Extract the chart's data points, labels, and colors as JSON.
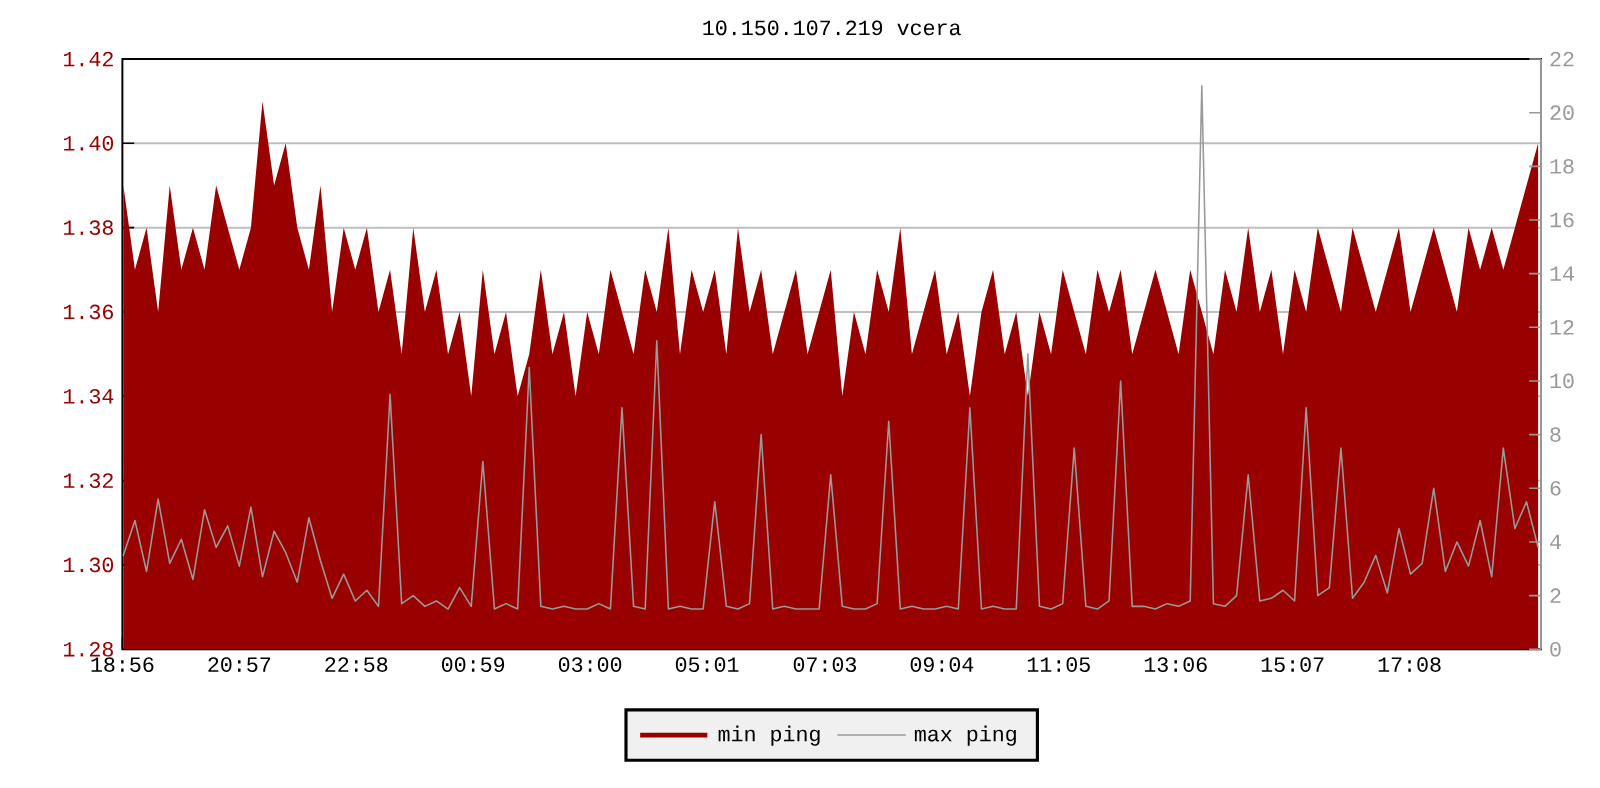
{
  "chart_data": {
    "type": "area",
    "title": "10.150.107.219 vcera",
    "x": [
      "2000-01-01T18:57",
      "2000-01-01T19:09",
      "2000-01-01T19:21",
      "2000-01-01T19:33",
      "2000-01-01T19:45",
      "2000-01-01T19:57",
      "2000-01-01T20:09",
      "2000-01-01T20:21",
      "2000-01-01T20:33",
      "2000-01-01T20:45",
      "2000-01-01T20:57",
      "2000-01-01T21:09",
      "2000-01-01T21:21",
      "2000-01-01T21:33",
      "2000-01-01T21:45",
      "2000-01-01T21:57",
      "2000-01-01T22:09",
      "2000-01-01T22:21",
      "2000-01-01T22:33",
      "2000-01-01T22:45",
      "2000-01-01T22:57",
      "2000-01-01T23:09",
      "2000-01-01T23:21",
      "2000-01-01T23:33",
      "2000-01-01T23:45",
      "2000-01-01T23:57",
      "2000-01-02T00:09",
      "2000-01-02T00:21",
      "2000-01-02T00:33",
      "2000-01-02T00:45",
      "2000-01-02T00:57",
      "2000-01-02T01:09",
      "2000-01-02T01:21",
      "2000-01-02T01:33",
      "2000-01-02T01:45",
      "2000-01-02T01:57",
      "2000-01-02T02:09",
      "2000-01-02T02:21",
      "2000-01-02T02:33",
      "2000-01-02T02:45",
      "2000-01-02T02:57",
      "2000-01-02T03:09",
      "2000-01-02T03:21",
      "2000-01-02T03:33",
      "2000-01-02T03:45",
      "2000-01-02T03:57",
      "2000-01-02T04:09",
      "2000-01-02T04:21",
      "2000-01-02T04:33",
      "2000-01-02T04:45",
      "2000-01-02T04:57",
      "2000-01-02T05:09",
      "2000-01-02T05:21",
      "2000-01-02T05:33",
      "2000-01-02T05:45",
      "2000-01-02T05:57",
      "2000-01-02T06:09",
      "2000-01-02T06:21",
      "2000-01-02T06:33",
      "2000-01-02T06:45",
      "2000-01-02T06:57",
      "2000-01-02T07:09",
      "2000-01-02T07:21",
      "2000-01-02T07:33",
      "2000-01-02T07:45",
      "2000-01-02T07:57",
      "2000-01-02T08:09",
      "2000-01-02T08:21",
      "2000-01-02T08:33",
      "2000-01-02T08:45",
      "2000-01-02T08:57",
      "2000-01-02T09:09",
      "2000-01-02T09:21",
      "2000-01-02T09:33",
      "2000-01-02T09:45",
      "2000-01-02T09:57",
      "2000-01-02T10:09",
      "2000-01-02T10:21",
      "2000-01-02T10:33",
      "2000-01-02T10:45",
      "2000-01-02T10:57",
      "2000-01-02T11:09",
      "2000-01-02T11:21",
      "2000-01-02T11:33",
      "2000-01-02T11:45",
      "2000-01-02T11:57",
      "2000-01-02T12:09",
      "2000-01-02T12:21",
      "2000-01-02T12:33",
      "2000-01-02T12:45",
      "2000-01-02T12:57",
      "2000-01-02T13:09",
      "2000-01-02T13:21",
      "2000-01-02T13:33",
      "2000-01-02T13:45",
      "2000-01-02T13:57",
      "2000-01-02T14:09",
      "2000-01-02T14:21",
      "2000-01-02T14:33",
      "2000-01-02T14:45",
      "2000-01-02T14:57",
      "2000-01-02T15:09",
      "2000-01-02T15:21",
      "2000-01-02T15:33",
      "2000-01-02T15:45",
      "2000-01-02T15:57",
      "2000-01-02T16:09",
      "2000-01-02T16:21",
      "2000-01-02T16:33",
      "2000-01-02T16:45",
      "2000-01-02T16:57",
      "2000-01-02T17:09",
      "2000-01-02T17:21",
      "2000-01-02T17:33",
      "2000-01-02T17:45",
      "2000-01-02T17:57",
      "2000-01-02T18:09",
      "2000-01-02T18:21",
      "2000-01-02T18:33",
      "2000-01-02T18:45",
      "2000-01-02T18:57",
      "2000-01-02T19:09",
      "2000-01-02T19:21"
    ],
    "series": [
      {
        "name": "min ping",
        "color": "#990000",
        "values": [
          1.39,
          1.37,
          1.38,
          1.36,
          1.39,
          1.37,
          1.38,
          1.37,
          1.39,
          1.38,
          1.37,
          1.38,
          1.41,
          1.39,
          1.4,
          1.38,
          1.37,
          1.39,
          1.36,
          1.38,
          1.37,
          1.38,
          1.36,
          1.37,
          1.35,
          1.38,
          1.36,
          1.37,
          1.35,
          1.36,
          1.34,
          1.37,
          1.35,
          1.36,
          1.34,
          1.35,
          1.37,
          1.35,
          1.36,
          1.34,
          1.36,
          1.35,
          1.37,
          1.36,
          1.35,
          1.37,
          1.36,
          1.38,
          1.35,
          1.37,
          1.36,
          1.37,
          1.35,
          1.38,
          1.36,
          1.37,
          1.35,
          1.36,
          1.37,
          1.35,
          1.36,
          1.37,
          1.34,
          1.36,
          1.35,
          1.37,
          1.36,
          1.38,
          1.35,
          1.36,
          1.37,
          1.35,
          1.36,
          1.34,
          1.36,
          1.37,
          1.35,
          1.36,
          1.34,
          1.36,
          1.35,
          1.37,
          1.36,
          1.35,
          1.37,
          1.36,
          1.37,
          1.35,
          1.36,
          1.37,
          1.36,
          1.35,
          1.37,
          1.36,
          1.35,
          1.37,
          1.36,
          1.38,
          1.36,
          1.37,
          1.35,
          1.37,
          1.36,
          1.38,
          1.37,
          1.36,
          1.38,
          1.37,
          1.36,
          1.37,
          1.38,
          1.36,
          1.37,
          1.38,
          1.37,
          1.36,
          1.38,
          1.37,
          1.38,
          1.37,
          1.38,
          1.39,
          1.4
        ]
      },
      {
        "name": "max ping",
        "type": "line",
        "axis": "y2",
        "color": "#999999",
        "values": [
          3.5,
          4.8,
          2.9,
          5.6,
          3.2,
          4.1,
          2.6,
          5.2,
          3.8,
          4.6,
          3.1,
          5.3,
          2.7,
          4.4,
          3.6,
          2.5,
          4.9,
          3.3,
          1.9,
          2.8,
          1.8,
          2.2,
          1.6,
          9.5,
          1.7,
          2.0,
          1.6,
          1.8,
          1.5,
          2.3,
          1.6,
          7.0,
          1.5,
          1.7,
          1.5,
          10.5,
          1.6,
          1.5,
          1.6,
          1.5,
          1.5,
          1.7,
          1.5,
          9.0,
          1.6,
          1.5,
          11.5,
          1.5,
          1.6,
          1.5,
          1.5,
          5.5,
          1.6,
          1.5,
          1.7,
          8.0,
          1.5,
          1.6,
          1.5,
          1.5,
          1.5,
          6.5,
          1.6,
          1.5,
          1.5,
          1.7,
          8.5,
          1.5,
          1.6,
          1.5,
          1.5,
          1.6,
          1.5,
          9.0,
          1.5,
          1.6,
          1.5,
          1.5,
          11.0,
          1.6,
          1.5,
          1.7,
          7.5,
          1.6,
          1.5,
          1.8,
          10.0,
          1.6,
          1.6,
          1.5,
          1.7,
          1.6,
          1.8,
          21.0,
          1.7,
          1.6,
          2.0,
          6.5,
          1.8,
          1.9,
          2.2,
          1.8,
          9.0,
          2.0,
          2.3,
          7.5,
          1.9,
          2.5,
          3.5,
          2.1,
          4.5,
          2.8,
          3.2,
          6.0,
          2.9,
          4.0,
          3.1,
          4.8,
          2.7,
          7.5,
          4.5,
          5.5,
          3.8
        ]
      }
    ],
    "xlim": [
      "2000-01-01T18:56",
      "2000-01-02T19:24"
    ],
    "xticks": [
      {
        "value": "2000-01-01T18:56",
        "label": "18:56"
      },
      {
        "value": "2000-01-01T20:57",
        "label": "20:57"
      },
      {
        "value": "2000-01-01T22:58",
        "label": "22:58"
      },
      {
        "value": "2000-01-02T00:59",
        "label": "00:59"
      },
      {
        "value": "2000-01-02T03:00",
        "label": "03:00"
      },
      {
        "value": "2000-01-02T05:01",
        "label": "05:01"
      },
      {
        "value": "2000-01-02T07:03",
        "label": "07:03"
      },
      {
        "value": "2000-01-02T09:04",
        "label": "09:04"
      },
      {
        "value": "2000-01-02T11:05",
        "label": "11:05"
      },
      {
        "value": "2000-01-02T13:06",
        "label": "13:06"
      },
      {
        "value": "2000-01-02T15:07",
        "label": "15:07"
      },
      {
        "value": "2000-01-02T17:08",
        "label": "17:08"
      }
    ],
    "ylim": [
      1.28,
      1.42
    ],
    "yticks": [
      {
        "value": 1.28,
        "label": "1.28"
      },
      {
        "value": 1.3,
        "label": "1.30"
      },
      {
        "value": 1.32,
        "label": "1.32"
      },
      {
        "value": 1.34,
        "label": "1.34"
      },
      {
        "value": 1.36,
        "label": "1.36"
      },
      {
        "value": 1.38,
        "label": "1.38"
      },
      {
        "value": 1.4,
        "label": "1.40"
      },
      {
        "value": 1.42,
        "label": "1.42"
      }
    ],
    "y2lim": [
      0,
      22
    ],
    "y2ticks": [
      0,
      2,
      4,
      6,
      8,
      10,
      12,
      14,
      16,
      18,
      20,
      22
    ],
    "grid": "y",
    "legend": "bottom"
  }
}
